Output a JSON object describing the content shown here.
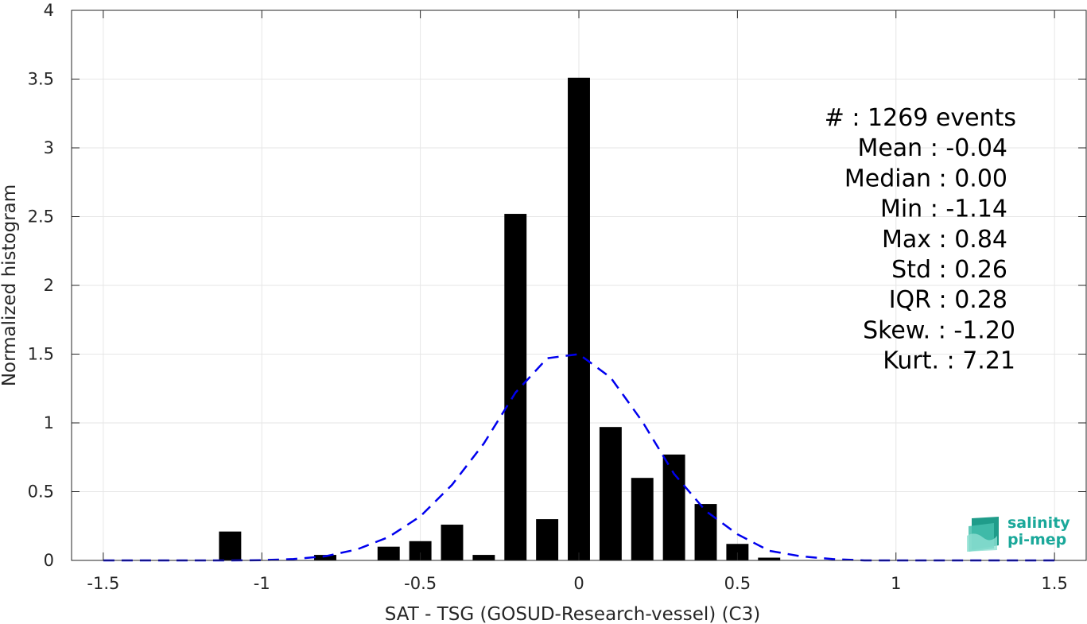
{
  "chart_data": {
    "type": "bar",
    "title": "",
    "xlabel": "SAT - TSG (GOSUD-Research-vessel) (C3)",
    "ylabel": "Normalized histogram",
    "xlim": [
      -1.6,
      1.6
    ],
    "ylim": [
      0,
      4
    ],
    "xticks": [
      -1.5,
      -1,
      -0.5,
      0,
      0.5,
      1,
      1.5
    ],
    "xtick_labels": [
      "-1.5",
      "-1",
      "-0.5",
      "0",
      "0.5",
      "1",
      "1.5"
    ],
    "yticks": [
      0,
      0.5,
      1,
      1.5,
      2,
      2.5,
      3,
      3.5,
      4
    ],
    "ytick_labels": [
      "0",
      "0.5",
      "1",
      "1.5",
      "2",
      "2.5",
      "3",
      "3.5",
      "4"
    ],
    "grid": true,
    "bin_width": 0.1,
    "bars": [
      {
        "x": -1.1,
        "y": 0.21
      },
      {
        "x": -0.8,
        "y": 0.04
      },
      {
        "x": -0.6,
        "y": 0.1
      },
      {
        "x": -0.5,
        "y": 0.14
      },
      {
        "x": -0.4,
        "y": 0.26
      },
      {
        "x": -0.3,
        "y": 0.04
      },
      {
        "x": -0.2,
        "y": 2.52
      },
      {
        "x": -0.1,
        "y": 0.3
      },
      {
        "x": 0.0,
        "y": 3.51
      },
      {
        "x": 0.1,
        "y": 0.97
      },
      {
        "x": 0.2,
        "y": 0.6
      },
      {
        "x": 0.3,
        "y": 0.77
      },
      {
        "x": 0.4,
        "y": 0.41
      },
      {
        "x": 0.5,
        "y": 0.12
      },
      {
        "x": 0.6,
        "y": 0.02
      }
    ],
    "bar_color": "#000000",
    "fit_curve": {
      "style": "dashed",
      "color": "#0000ee",
      "x": [
        -1.5,
        -1.4,
        -1.3,
        -1.2,
        -1.1,
        -1.0,
        -0.9,
        -0.8,
        -0.7,
        -0.6,
        -0.5,
        -0.4,
        -0.3,
        -0.2,
        -0.1,
        0.0,
        0.1,
        0.2,
        0.3,
        0.4,
        0.5,
        0.6,
        0.7,
        0.8,
        0.9,
        1.0,
        1.1,
        1.2,
        1.3,
        1.4,
        1.5
      ],
      "y": [
        0.0,
        0.0,
        0.0,
        0.0,
        0.0,
        0.002,
        0.01,
        0.03,
        0.08,
        0.17,
        0.32,
        0.55,
        0.85,
        1.22,
        1.47,
        1.5,
        1.33,
        1.01,
        0.63,
        0.36,
        0.19,
        0.07,
        0.03,
        0.01,
        0.0,
        0.0,
        0.0,
        0.0,
        0.0,
        0.0,
        0.0
      ]
    },
    "stats": [
      "#  : 1269 events",
      "Mean : -0.04",
      "Median : 0.00",
      "Min : -1.14",
      "Max : 0.84",
      "Std : 0.26",
      "IQR : 0.28",
      "Skew. : -1.20",
      "Kurt. : 7.21"
    ]
  },
  "logo": {
    "line1": "salinity",
    "line2": "pi-mep",
    "color": "#1aa89a"
  }
}
